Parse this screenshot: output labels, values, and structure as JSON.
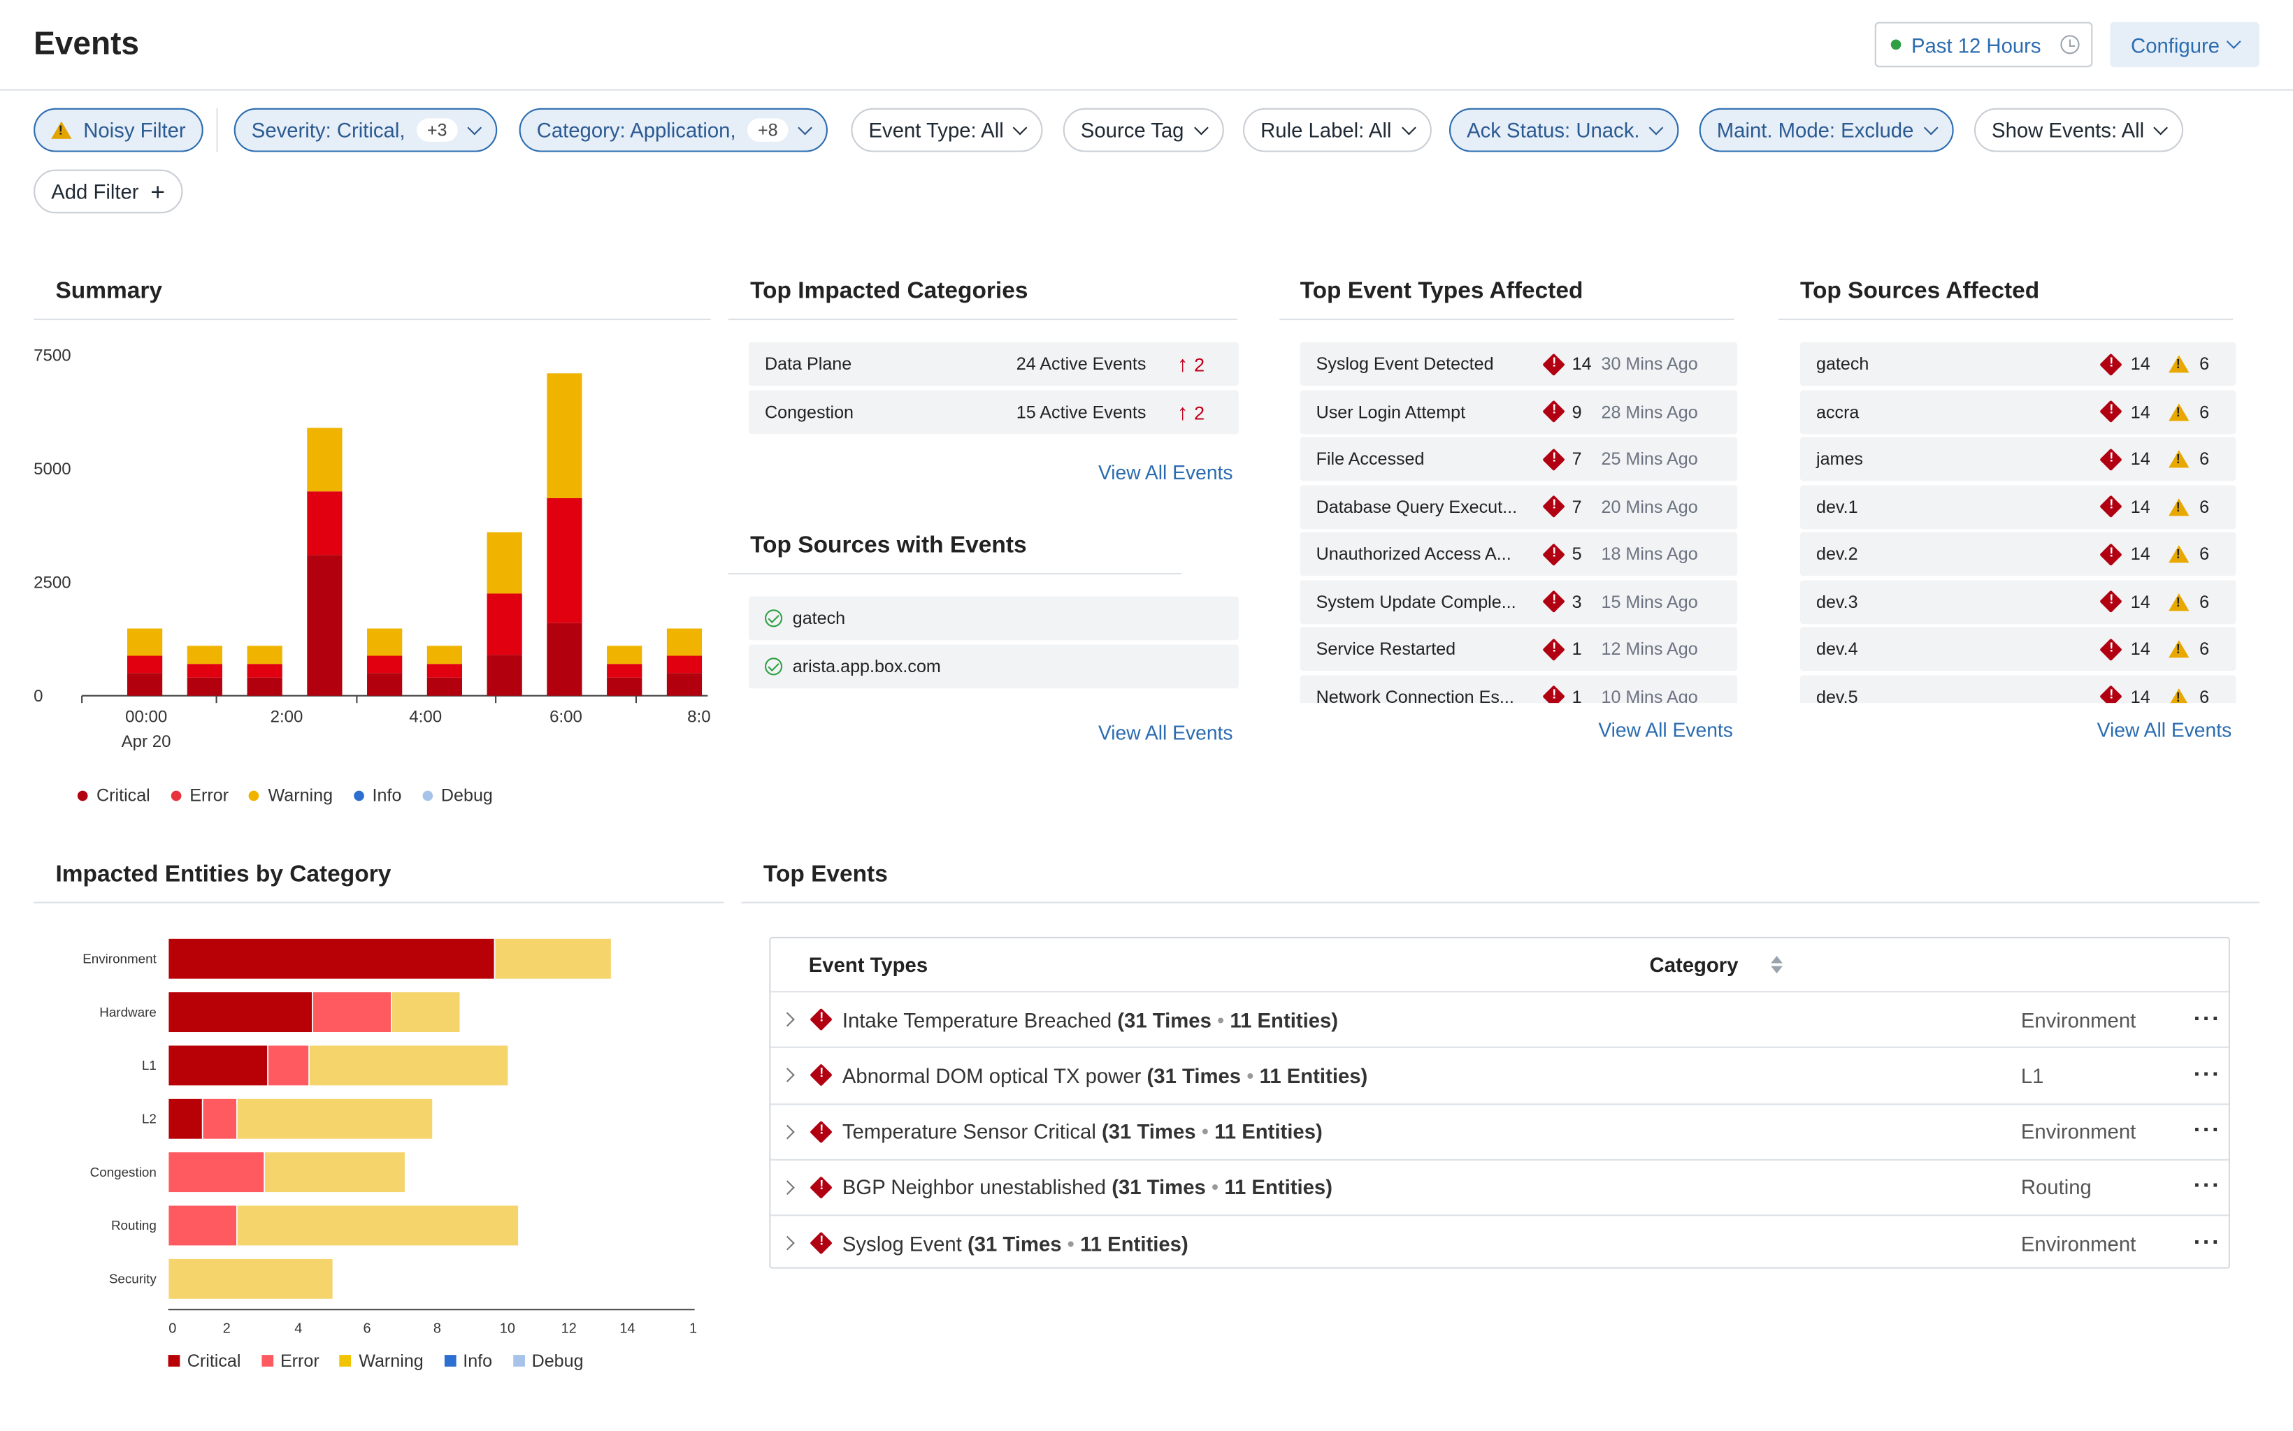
{
  "header": {
    "title": "Events",
    "time_range": "Past 12 Hours",
    "configure": "Configure"
  },
  "filters": [
    {
      "label": "Noisy Filter",
      "count": "",
      "selected": true
    },
    {
      "label": "Severity: Critical,",
      "count": "+3",
      "selected": true
    },
    {
      "label": "Category: Application,",
      "count": "+8",
      "selected": true
    },
    {
      "label": "Event Type: All",
      "count": "",
      "selected": false
    },
    {
      "label": "Source Tag",
      "count": "",
      "selected": false
    },
    {
      "label": "Rule Label: All",
      "count": "",
      "selected": false
    },
    {
      "label": "Ack Status: Unack.",
      "count": "",
      "selected": true
    },
    {
      "label": "Maint. Mode: Exclude",
      "count": "",
      "selected": true
    },
    {
      "label": "Show Events: All",
      "count": "",
      "selected": false
    }
  ],
  "add_filter": "Add Filter",
  "summary": {
    "title": "Summary",
    "date_label": "Apr 20",
    "legend": [
      "Critical",
      "Error",
      "Warning",
      "Info",
      "Debug"
    ]
  },
  "colors": {
    "critical": "#b3000e",
    "error": "#e0000f",
    "warning": "#f0b400",
    "info": "#2d6fd1",
    "debug": "#a7c3ea",
    "hcritical": "#b80007",
    "herror": "#ff5a5f",
    "hwarning": "#f5d46c"
  },
  "chart_data": [
    {
      "type": "bar",
      "title": "",
      "stacked": true,
      "x_tick_labels": [
        "00:00",
        "2:00",
        "4:00",
        "6:00",
        "8:0"
      ],
      "y_tick_labels": [
        "0",
        "2500",
        "5000",
        "7500"
      ],
      "ylim": [
        0,
        7500
      ],
      "categories": [
        "b1",
        "b2",
        "b3",
        "b4",
        "b5",
        "b6",
        "b7",
        "b8",
        "b9",
        "b10"
      ],
      "series": [
        {
          "name": "Critical",
          "values": [
            500,
            400,
            400,
            3100,
            500,
            400,
            900,
            1600,
            400,
            500
          ]
        },
        {
          "name": "Error",
          "values": [
            380,
            300,
            300,
            1400,
            380,
            300,
            1350,
            2750,
            300,
            380
          ]
        },
        {
          "name": "Warning",
          "values": [
            600,
            400,
            400,
            1400,
            600,
            400,
            1350,
            2750,
            400,
            600
          ]
        }
      ]
    },
    {
      "type": "bar",
      "orientation": "horizontal",
      "title": "",
      "stacked": true,
      "categories": [
        "Environment",
        "Hardware",
        "L1",
        "L2",
        "Congestion",
        "Routing",
        "Security"
      ],
      "x_tick_labels": [
        "0",
        "2",
        "4",
        "6",
        "8",
        "10",
        "12",
        "14",
        "1"
      ],
      "xlim": [
        0,
        16
      ],
      "series": [
        {
          "name": "Critical",
          "values": [
            9.5,
            4.2,
            2.9,
            1.0,
            0,
            0,
            0
          ]
        },
        {
          "name": "Error",
          "values": [
            0,
            2.3,
            1.2,
            1.0,
            2.8,
            2.0,
            0
          ]
        },
        {
          "name": "Warning",
          "values": [
            3.4,
            2.0,
            5.8,
            5.7,
            4.1,
            8.2,
            4.8
          ]
        }
      ]
    }
  ],
  "impacted": {
    "title": "Impacted Entities by Category",
    "legend": [
      "Critical",
      "Error",
      "Warning",
      "Info",
      "Debug"
    ]
  },
  "top_categories": {
    "title": "Top Impacted Categories",
    "rows": [
      {
        "name": "Data Plane",
        "events": "24 Active Events",
        "trend": "2"
      },
      {
        "name": "Congestion",
        "events": "15 Active Events",
        "trend": "2"
      }
    ],
    "view_all": "View All Events"
  },
  "top_sources_events": {
    "title": "Top Sources with Events",
    "rows": [
      "gatech",
      "arista.app.box.com"
    ],
    "view_all": "View All Events"
  },
  "top_event_types": {
    "title": "Top Event Types Affected",
    "rows": [
      {
        "name": "Syslog Event Detected",
        "count": "14",
        "ago": "30 Mins Ago"
      },
      {
        "name": "User Login Attempt",
        "count": "9",
        "ago": "28 Mins Ago"
      },
      {
        "name": "File Accessed",
        "count": "7",
        "ago": "25 Mins Ago"
      },
      {
        "name": "Database Query Execut...",
        "count": "7",
        "ago": "20 Mins Ago"
      },
      {
        "name": "Unauthorized Access A...",
        "count": "5",
        "ago": "18 Mins Ago"
      },
      {
        "name": "System Update Comple...",
        "count": "3",
        "ago": "15 Mins Ago"
      },
      {
        "name": "Service Restarted",
        "count": "1",
        "ago": "12 Mins Ago"
      },
      {
        "name": "Network Connection Es...",
        "count": "1",
        "ago": "10 Mins Ago"
      }
    ],
    "view_all": "View All Events"
  },
  "top_sources": {
    "title": "Top Sources Affected",
    "rows": [
      {
        "name": "gatech",
        "critical": "14",
        "warning": "6"
      },
      {
        "name": "accra",
        "critical": "14",
        "warning": "6"
      },
      {
        "name": "james",
        "critical": "14",
        "warning": "6"
      },
      {
        "name": "dev.1",
        "critical": "14",
        "warning": "6"
      },
      {
        "name": "dev.2",
        "critical": "14",
        "warning": "6"
      },
      {
        "name": "dev.3",
        "critical": "14",
        "warning": "6"
      },
      {
        "name": "dev.4",
        "critical": "14",
        "warning": "6"
      },
      {
        "name": "dev.5",
        "critical": "14",
        "warning": "6"
      }
    ],
    "view_all": "View All Events"
  },
  "top_events": {
    "title": "Top Events",
    "columns": [
      "Event Types",
      "Category"
    ],
    "rows": [
      {
        "name": "Intake Temperature Breached",
        "times": "(31 Times",
        "entities": "11 Entities)",
        "category": "Environment"
      },
      {
        "name": "Abnormal DOM optical TX power",
        "times": "(31 Times",
        "entities": "11 Entities)",
        "category": "L1"
      },
      {
        "name": "Temperature Sensor Critical",
        "times": "(31 Times",
        "entities": "11 Entities)",
        "category": "Environment"
      },
      {
        "name": "BGP Neighbor unestablished",
        "times": "(31 Times",
        "entities": "11 Entities)",
        "category": "Routing"
      },
      {
        "name": "Syslog Event",
        "times": "(31 Times",
        "entities": "11 Entities)",
        "category": "Environment"
      }
    ]
  }
}
